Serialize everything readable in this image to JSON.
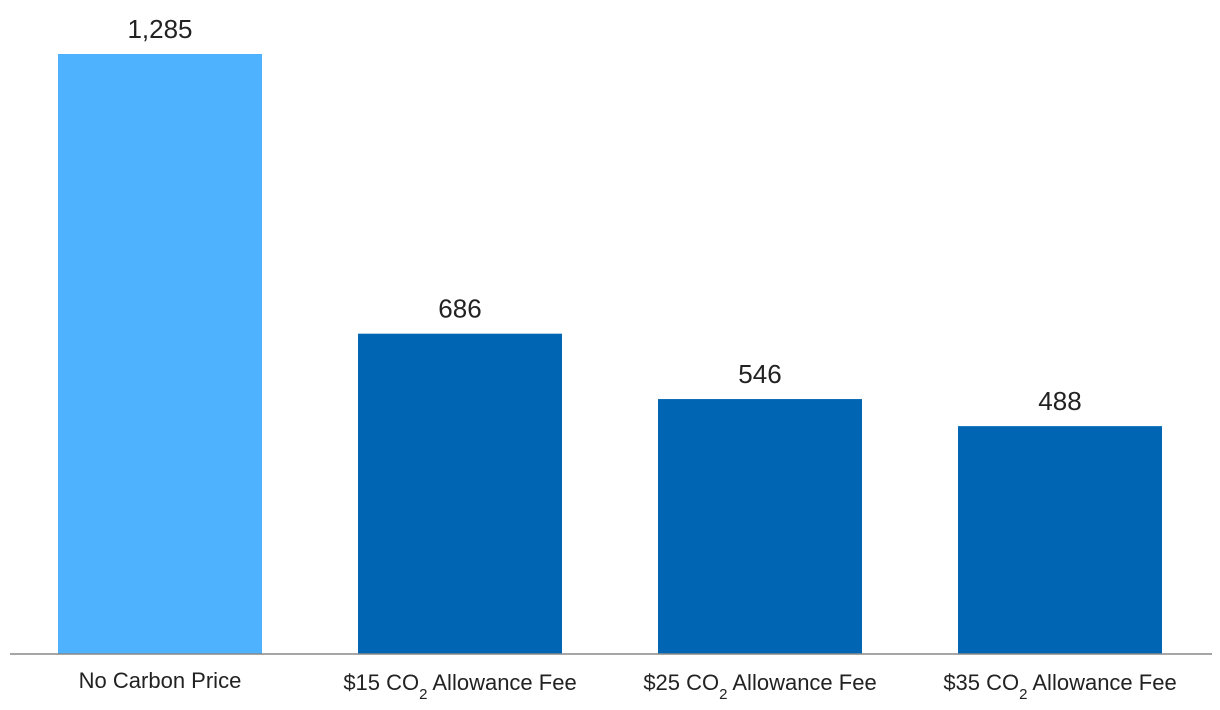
{
  "chart_data": {
    "type": "bar",
    "title": "",
    "xlabel": "",
    "ylabel": "",
    "ylim": [
      0,
      1285
    ],
    "grid": false,
    "legend": "none",
    "categories": [
      [
        "No Carbon Price",
        "",
        ""
      ],
      [
        "$15 CO",
        "2",
        " Allowance Fee"
      ],
      [
        "$25 CO",
        "2",
        " Allowance Fee"
      ],
      [
        "$35 CO",
        "2",
        " Allowance Fee"
      ]
    ],
    "values": [
      1285,
      686,
      546,
      488
    ],
    "value_labels": [
      "1,285",
      "686",
      "546",
      "488"
    ],
    "colors": [
      "#4fb2ff",
      "#0066b3",
      "#0066b3",
      "#0066b3"
    ],
    "axis_color": "#888888"
  }
}
